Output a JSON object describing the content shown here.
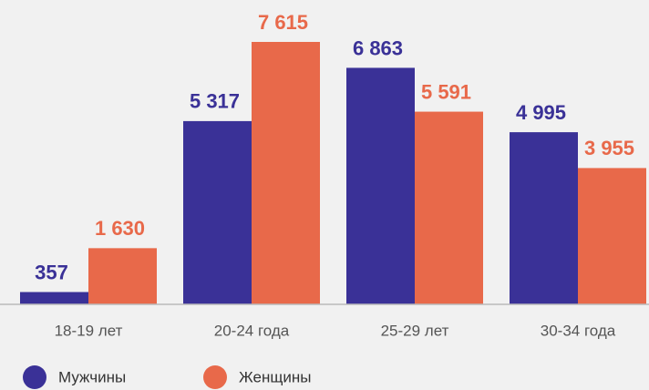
{
  "chart_data": {
    "type": "bar",
    "categories": [
      "18-19 лет",
      "20-24 года",
      "25-29 лет",
      "30-34 года"
    ],
    "series": [
      {
        "name": "Мужчины",
        "color": "#3a3197",
        "values": [
          357,
          5317,
          6863,
          4995
        ],
        "value_labels": [
          "357",
          "5 317",
          "6 863",
          "4 995"
        ]
      },
      {
        "name": "Женщины",
        "color": "#e8694a",
        "values": [
          1630,
          7615,
          5591,
          3955
        ],
        "value_labels": [
          "1 630",
          "7 615",
          "5 591",
          "3 955"
        ]
      }
    ]
  }
}
